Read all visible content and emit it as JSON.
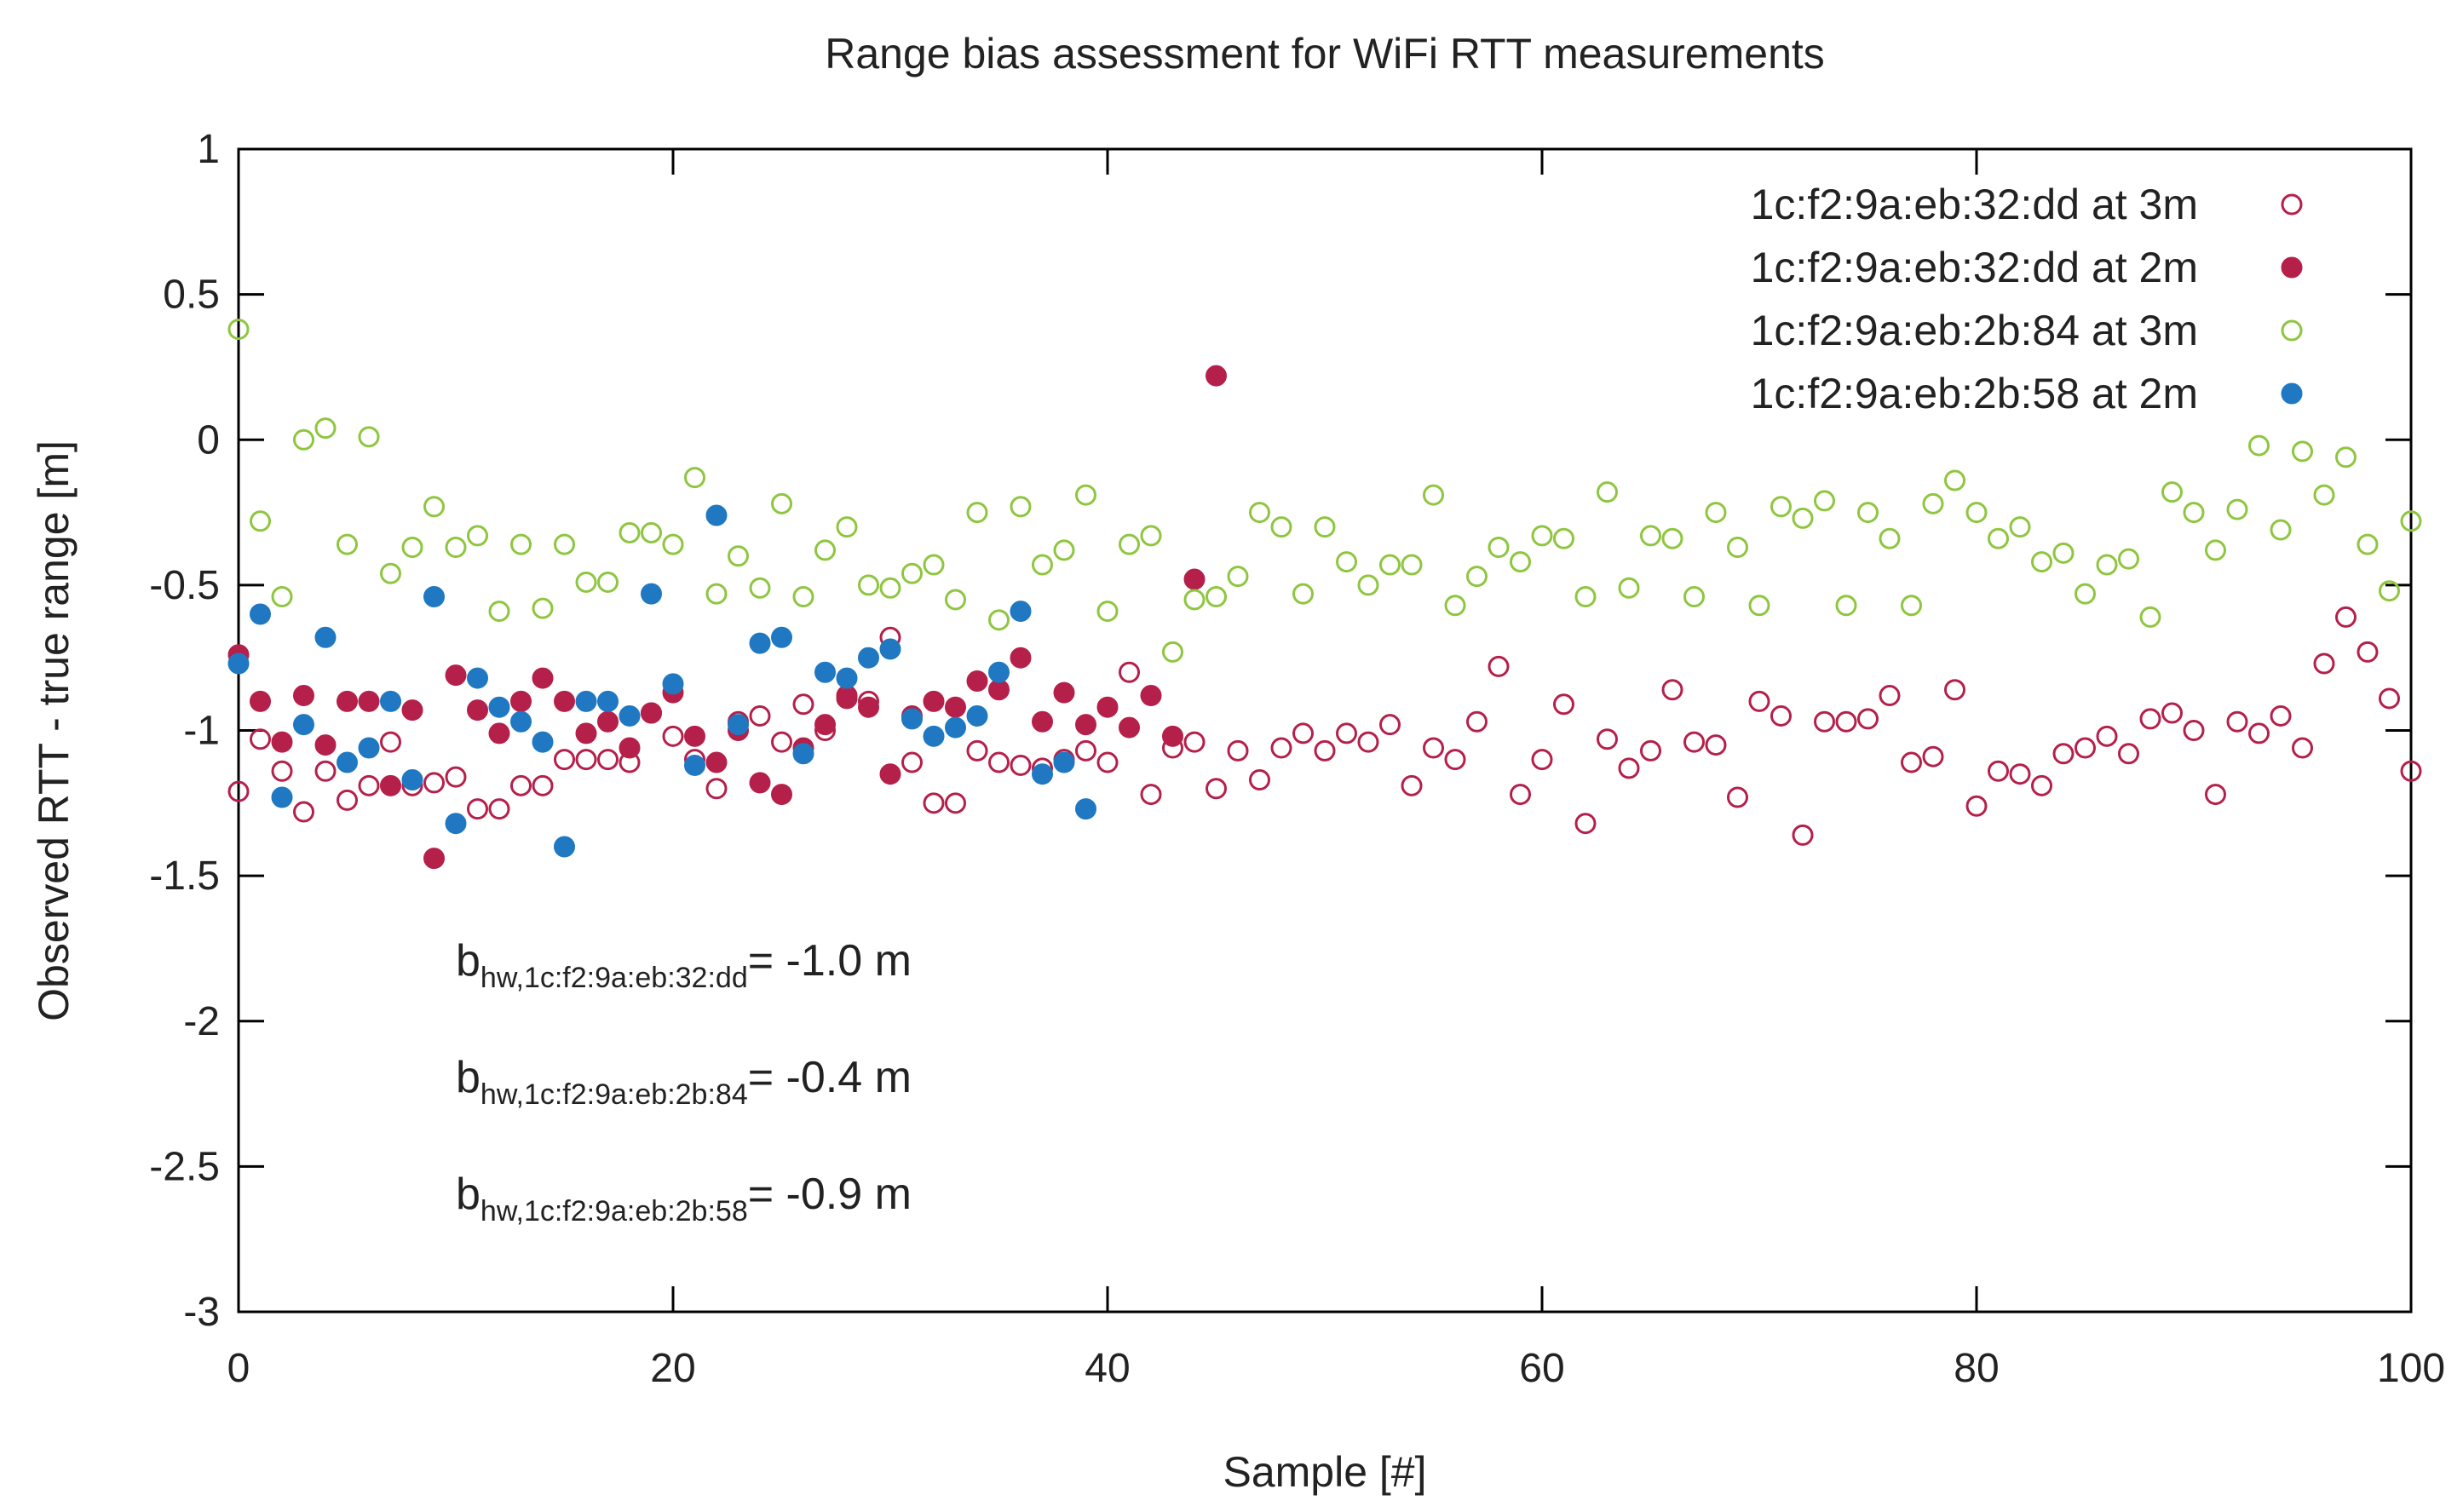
{
  "chart_data": {
    "type": "scatter",
    "title": "Range bias assessment for WiFi RTT measurements",
    "xlabel": "Sample [#]",
    "ylabel": "Observed RTT - true range [m]",
    "xlim": [
      0,
      100
    ],
    "ylim": [
      -3,
      1
    ],
    "xticks": [
      0,
      20,
      40,
      60,
      80,
      100
    ],
    "yticks": [
      1,
      0.5,
      0,
      -0.5,
      -1,
      -1.5,
      -2,
      -2.5,
      -3
    ],
    "ytick_labels": [
      "1",
      "0.5",
      "0",
      "-0.5",
      "-1",
      "-1.5",
      "-2",
      "-2.5",
      "-3"
    ],
    "grid": false,
    "legend_position": "top-right",
    "series": [
      {
        "name": "1c:f2:9a:eb:32:dd at 3m",
        "marker": "open-circle",
        "color": "#b5204a",
        "points": [
          [
            0,
            -1.21
          ],
          [
            1,
            -1.03
          ],
          [
            2,
            -1.14
          ],
          [
            3,
            -1.28
          ],
          [
            4,
            -1.14
          ],
          [
            5,
            -1.24
          ],
          [
            6,
            -1.19
          ],
          [
            7,
            -1.04
          ],
          [
            8,
            -1.19
          ],
          [
            9,
            -1.18
          ],
          [
            10,
            -1.16
          ],
          [
            11,
            -1.27
          ],
          [
            12,
            -1.27
          ],
          [
            13,
            -1.19
          ],
          [
            14,
            -1.19
          ],
          [
            15,
            -1.1
          ],
          [
            16,
            -1.1
          ],
          [
            17,
            -1.1
          ],
          [
            18,
            -1.11
          ],
          [
            19,
            -0.94
          ],
          [
            20,
            -1.02
          ],
          [
            21,
            -1.1
          ],
          [
            22,
            -1.2
          ],
          [
            23,
            -0.97
          ],
          [
            24,
            -0.95
          ],
          [
            25,
            -1.04
          ],
          [
            26,
            -0.91
          ],
          [
            27,
            -1.0
          ],
          [
            28,
            -0.88
          ],
          [
            29,
            -0.9
          ],
          [
            30,
            -0.68
          ],
          [
            31,
            -1.11
          ],
          [
            32,
            -1.25
          ],
          [
            33,
            -1.25
          ],
          [
            34,
            -1.07
          ],
          [
            35,
            -1.11
          ],
          [
            36,
            -1.12
          ],
          [
            37,
            -1.13
          ],
          [
            38,
            -1.1
          ],
          [
            39,
            -1.07
          ],
          [
            40,
            -1.11
          ],
          [
            41,
            -0.8
          ],
          [
            42,
            -1.22
          ],
          [
            43,
            -1.06
          ],
          [
            44,
            -1.04
          ],
          [
            45,
            -1.2
          ],
          [
            46,
            -1.07
          ],
          [
            47,
            -1.17
          ],
          [
            48,
            -1.06
          ],
          [
            49,
            -1.01
          ],
          [
            50,
            -1.07
          ],
          [
            51,
            -1.01
          ],
          [
            52,
            -1.04
          ],
          [
            53,
            -0.98
          ],
          [
            54,
            -1.19
          ],
          [
            55,
            -1.06
          ],
          [
            56,
            -1.1
          ],
          [
            57,
            -0.97
          ],
          [
            58,
            -0.78
          ],
          [
            59,
            -1.22
          ],
          [
            60,
            -1.1
          ],
          [
            61,
            -0.91
          ],
          [
            62,
            -1.32
          ],
          [
            63,
            -1.03
          ],
          [
            64,
            -1.13
          ],
          [
            65,
            -1.07
          ],
          [
            66,
            -0.86
          ],
          [
            67,
            -1.04
          ],
          [
            68,
            -1.05
          ],
          [
            69,
            -1.23
          ],
          [
            70,
            -0.9
          ],
          [
            71,
            -0.95
          ],
          [
            72,
            -1.36
          ],
          [
            73,
            -0.97
          ],
          [
            74,
            -0.97
          ],
          [
            75,
            -0.96
          ],
          [
            76,
            -0.88
          ],
          [
            77,
            -1.11
          ],
          [
            78,
            -1.09
          ],
          [
            79,
            -0.86
          ],
          [
            80,
            -1.26
          ],
          [
            81,
            -1.14
          ],
          [
            82,
            -1.15
          ],
          [
            83,
            -1.19
          ],
          [
            84,
            -1.08
          ],
          [
            85,
            -1.06
          ],
          [
            86,
            -1.02
          ],
          [
            87,
            -1.08
          ],
          [
            88,
            -0.96
          ],
          [
            89,
            -0.94
          ],
          [
            90,
            -1.0
          ],
          [
            91,
            -1.22
          ],
          [
            92,
            -0.97
          ],
          [
            93,
            -1.01
          ],
          [
            94,
            -0.95
          ],
          [
            95,
            -1.06
          ],
          [
            96,
            -0.77
          ],
          [
            97,
            -0.61
          ],
          [
            98,
            -0.73
          ],
          [
            99,
            -0.89
          ],
          [
            100,
            -1.14
          ]
        ]
      },
      {
        "name": "1c:f2:9a:eb:32:dd at 2m",
        "marker": "filled-circle",
        "color": "#b5204a",
        "points": [
          [
            0,
            -0.74
          ],
          [
            1,
            -0.9
          ],
          [
            2,
            -1.04
          ],
          [
            3,
            -0.88
          ],
          [
            4,
            -1.05
          ],
          [
            5,
            -0.9
          ],
          [
            6,
            -0.9
          ],
          [
            7,
            -1.19
          ],
          [
            8,
            -0.93
          ],
          [
            9,
            -1.44
          ],
          [
            10,
            -0.81
          ],
          [
            11,
            -0.93
          ],
          [
            12,
            -1.01
          ],
          [
            13,
            -0.9
          ],
          [
            14,
            -0.82
          ],
          [
            15,
            -0.9
          ],
          [
            16,
            -1.01
          ],
          [
            17,
            -0.97
          ],
          [
            18,
            -1.06
          ],
          [
            19,
            -0.94
          ],
          [
            20,
            -0.87
          ],
          [
            21,
            -1.02
          ],
          [
            22,
            -1.11
          ],
          [
            23,
            -1.0
          ],
          [
            24,
            -1.18
          ],
          [
            25,
            -1.22
          ],
          [
            26,
            -1.06
          ],
          [
            27,
            -0.98
          ],
          [
            28,
            -0.89
          ],
          [
            29,
            -0.92
          ],
          [
            30,
            -1.15
          ],
          [
            31,
            -0.95
          ],
          [
            32,
            -0.9
          ],
          [
            33,
            -0.92
          ],
          [
            34,
            -0.83
          ],
          [
            35,
            -0.86
          ],
          [
            36,
            -0.75
          ],
          [
            37,
            -0.97
          ],
          [
            38,
            -0.87
          ],
          [
            39,
            -0.98
          ],
          [
            40,
            -0.92
          ],
          [
            41,
            -0.99
          ],
          [
            42,
            -0.88
          ],
          [
            43,
            -1.02
          ],
          [
            44,
            -0.48
          ],
          [
            45,
            0.22
          ]
        ]
      },
      {
        "name": "1c:f2:9a:eb:2b:84 at 3m",
        "marker": "open-circle",
        "color": "#8ec63f",
        "points": [
          [
            0,
            0.38
          ],
          [
            1,
            -0.28
          ],
          [
            2,
            -0.54
          ],
          [
            3,
            0.0
          ],
          [
            4,
            0.04
          ],
          [
            5,
            -0.36
          ],
          [
            6,
            0.01
          ],
          [
            7,
            -0.46
          ],
          [
            8,
            -0.37
          ],
          [
            9,
            -0.23
          ],
          [
            10,
            -0.37
          ],
          [
            11,
            -0.33
          ],
          [
            12,
            -0.59
          ],
          [
            13,
            -0.36
          ],
          [
            14,
            -0.58
          ],
          [
            15,
            -0.36
          ],
          [
            16,
            -0.49
          ],
          [
            17,
            -0.49
          ],
          [
            18,
            -0.32
          ],
          [
            19,
            -0.32
          ],
          [
            20,
            -0.36
          ],
          [
            21,
            -0.13
          ],
          [
            22,
            -0.53
          ],
          [
            23,
            -0.4
          ],
          [
            24,
            -0.51
          ],
          [
            25,
            -0.22
          ],
          [
            26,
            -0.54
          ],
          [
            27,
            -0.38
          ],
          [
            28,
            -0.3
          ],
          [
            29,
            -0.5
          ],
          [
            30,
            -0.51
          ],
          [
            31,
            -0.46
          ],
          [
            32,
            -0.43
          ],
          [
            33,
            -0.55
          ],
          [
            34,
            -0.25
          ],
          [
            35,
            -0.62
          ],
          [
            36,
            -0.23
          ],
          [
            37,
            -0.43
          ],
          [
            38,
            -0.38
          ],
          [
            39,
            -0.19
          ],
          [
            40,
            -0.59
          ],
          [
            41,
            -0.36
          ],
          [
            42,
            -0.33
          ],
          [
            43,
            -0.73
          ],
          [
            44,
            -0.55
          ],
          [
            45,
            -0.54
          ],
          [
            46,
            -0.47
          ],
          [
            47,
            -0.25
          ],
          [
            48,
            -0.3
          ],
          [
            49,
            -0.53
          ],
          [
            50,
            -0.3
          ],
          [
            51,
            -0.42
          ],
          [
            52,
            -0.5
          ],
          [
            53,
            -0.43
          ],
          [
            54,
            -0.43
          ],
          [
            55,
            -0.19
          ],
          [
            56,
            -0.57
          ],
          [
            57,
            -0.47
          ],
          [
            58,
            -0.37
          ],
          [
            59,
            -0.42
          ],
          [
            60,
            -0.33
          ],
          [
            61,
            -0.34
          ],
          [
            62,
            -0.54
          ],
          [
            63,
            -0.18
          ],
          [
            64,
            -0.51
          ],
          [
            65,
            -0.33
          ],
          [
            66,
            -0.34
          ],
          [
            67,
            -0.54
          ],
          [
            68,
            -0.25
          ],
          [
            69,
            -0.37
          ],
          [
            70,
            -0.57
          ],
          [
            71,
            -0.23
          ],
          [
            72,
            -0.27
          ],
          [
            73,
            -0.21
          ],
          [
            74,
            -0.57
          ],
          [
            75,
            -0.25
          ],
          [
            76,
            -0.34
          ],
          [
            77,
            -0.57
          ],
          [
            78,
            -0.22
          ],
          [
            79,
            -0.14
          ],
          [
            80,
            -0.25
          ],
          [
            81,
            -0.34
          ],
          [
            82,
            -0.3
          ],
          [
            83,
            -0.42
          ],
          [
            84,
            -0.39
          ],
          [
            85,
            -0.53
          ],
          [
            86,
            -0.43
          ],
          [
            87,
            -0.41
          ],
          [
            88,
            -0.61
          ],
          [
            89,
            -0.18
          ],
          [
            90,
            -0.25
          ],
          [
            91,
            -0.38
          ],
          [
            92,
            -0.24
          ],
          [
            93,
            -0.02
          ],
          [
            94,
            -0.31
          ],
          [
            95,
            -0.04
          ],
          [
            96,
            -0.19
          ],
          [
            97,
            -0.06
          ],
          [
            98,
            -0.36
          ],
          [
            99,
            -0.52
          ],
          [
            100,
            -0.28
          ]
        ]
      },
      {
        "name": "1c:f2:9a:eb:2b:58 at 2m",
        "marker": "filled-circle",
        "color": "#1f78c1",
        "points": [
          [
            0,
            -0.77
          ],
          [
            1,
            -0.6
          ],
          [
            2,
            -1.23
          ],
          [
            3,
            -0.98
          ],
          [
            4,
            -0.68
          ],
          [
            5,
            -1.11
          ],
          [
            6,
            -1.06
          ],
          [
            7,
            -0.9
          ],
          [
            8,
            -1.17
          ],
          [
            9,
            -0.54
          ],
          [
            10,
            -1.32
          ],
          [
            11,
            -0.82
          ],
          [
            12,
            -0.92
          ],
          [
            13,
            -0.97
          ],
          [
            14,
            -1.04
          ],
          [
            15,
            -1.4
          ],
          [
            16,
            -0.9
          ],
          [
            17,
            -0.9
          ],
          [
            18,
            -0.95
          ],
          [
            19,
            -0.53
          ],
          [
            20,
            -0.84
          ],
          [
            21,
            -1.12
          ],
          [
            22,
            -0.26
          ],
          [
            23,
            -0.98
          ],
          [
            24,
            -0.7
          ],
          [
            25,
            -0.68
          ],
          [
            26,
            -1.08
          ],
          [
            27,
            -0.8
          ],
          [
            28,
            -0.82
          ],
          [
            29,
            -0.75
          ],
          [
            30,
            -0.72
          ],
          [
            31,
            -0.96
          ],
          [
            32,
            -1.02
          ],
          [
            33,
            -0.99
          ],
          [
            34,
            -0.95
          ],
          [
            35,
            -0.8
          ],
          [
            36,
            -0.59
          ],
          [
            37,
            -1.15
          ],
          [
            38,
            -1.11
          ],
          [
            39,
            -1.27
          ]
        ]
      }
    ],
    "annotations": [
      {
        "main": "b",
        "subscript": "hw,1c:f2:9a:eb:32:dd",
        "suffix": "= -1.0 m"
      },
      {
        "main": "b",
        "subscript": "hw,1c:f2:9a:eb:2b:84",
        "suffix": "= -0.4 m"
      },
      {
        "main": "b",
        "subscript": "hw,1c:f2:9a:eb:2b:58",
        "suffix": "= -0.9 m"
      }
    ]
  }
}
